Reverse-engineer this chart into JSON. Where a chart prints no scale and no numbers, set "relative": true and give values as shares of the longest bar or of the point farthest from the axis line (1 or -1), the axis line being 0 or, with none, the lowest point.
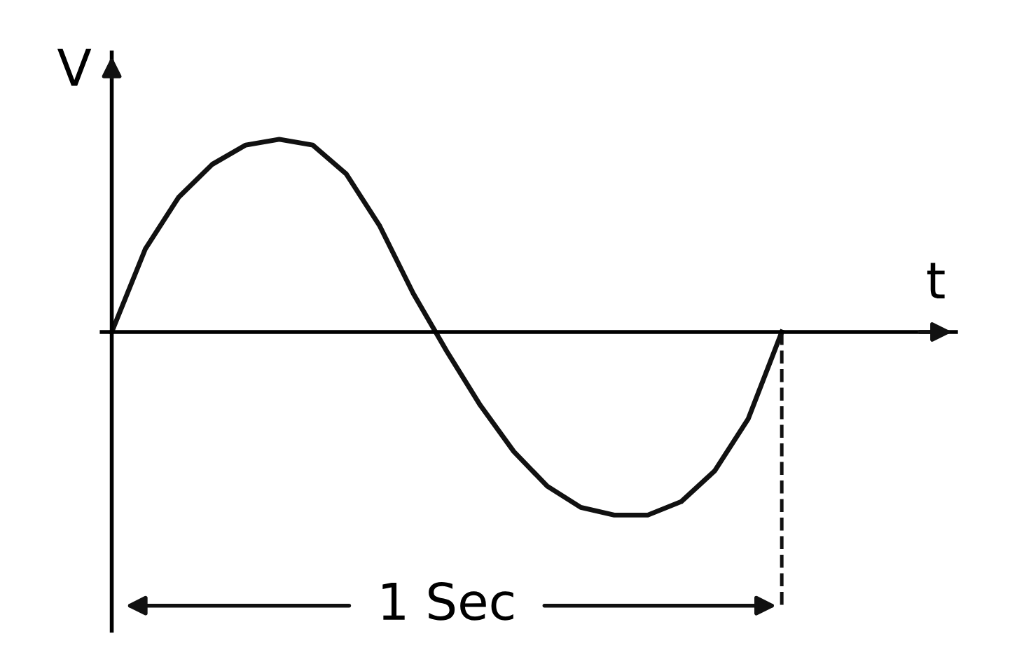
{
  "chart_data": {
    "type": "line",
    "relative": true,
    "xlabel": "t",
    "ylabel": "V",
    "categories": [
      null,
      null,
      null,
      null,
      null,
      null,
      null,
      null,
      null,
      null,
      null,
      null,
      null,
      null,
      null,
      null,
      null,
      null,
      null,
      null,
      null
    ],
    "series": [
      {
        "color": "#111111",
        "values": [
          0,
          0.43,
          0.7,
          0.87,
          0.97,
          1.0,
          0.97,
          0.82,
          0.55,
          0.2,
          -0.1,
          -0.38,
          -0.62,
          -0.8,
          -0.91,
          -0.95,
          -0.95,
          -0.88,
          -0.72,
          -0.45,
          0
        ]
      }
    ],
    "annotations": [
      "1 Sec"
    ],
    "marker": "none",
    "line_style": "solid"
  }
}
